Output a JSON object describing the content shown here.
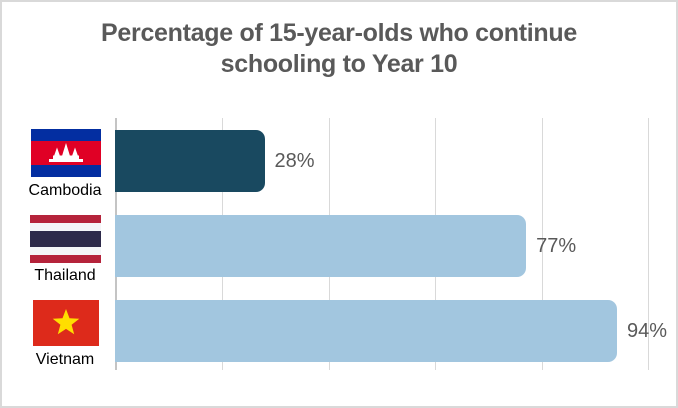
{
  "chart_data": {
    "type": "bar",
    "orientation": "horizontal",
    "title": "Percentage of 15-year-olds who continue schooling to Year 10",
    "categories": [
      "Cambodia",
      "Thailand",
      "Vietnam"
    ],
    "values": [
      28,
      77,
      94
    ],
    "data_labels": [
      "28%",
      "77%",
      "94%"
    ],
    "xlim": [
      0,
      100
    ],
    "x_gridline_step": 20,
    "grid": "vertical gridlines on",
    "legend_position": "none",
    "bar_colors": [
      "#194960",
      "#A2C6DF",
      "#A2C6DF"
    ]
  },
  "title_lines": [
    "Percentage of 15-year-olds who continue",
    "schooling to Year 10"
  ],
  "rows": [
    {
      "country": "Cambodia",
      "value": 28,
      "value_label": "28%",
      "flag": "cambodia-flag"
    },
    {
      "country": "Thailand",
      "value": 77,
      "value_label": "77%",
      "flag": "thailand-flag"
    },
    {
      "country": "Vietnam",
      "value": 94,
      "value_label": "94%",
      "flag": "vietnam-flag"
    }
  ],
  "flags": {
    "cambodia": {
      "colors": {
        "blue": "#032EA1",
        "red": "#E00025",
        "temple": "#FFFFFF"
      }
    },
    "thailand": {
      "colors": {
        "red": "#B5233B",
        "white": "#F4F5F8",
        "navy": "#2D2A4A"
      }
    },
    "vietnam": {
      "colors": {
        "red": "#DD2A1B",
        "star": "#FFDE00"
      }
    }
  },
  "styles": {
    "title_color": "#595959",
    "value_label_color": "#595959",
    "category_label_color": "#000000",
    "gridline_color": "#D9D9D9",
    "axis_line_color": "#C4C4C4",
    "bar_dark": "#194960",
    "bar_light": "#A2C6DF",
    "background": "#FFFFFF",
    "border_color": "#D9D9D9"
  }
}
